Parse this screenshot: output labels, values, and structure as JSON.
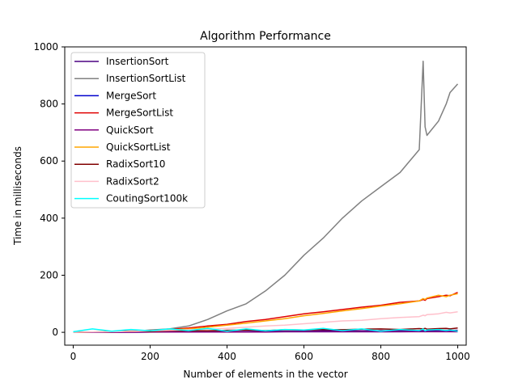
{
  "chart_data": {
    "type": "line",
    "title": "Algorithm Performance",
    "xlabel": "Number of elements in the vector",
    "ylabel": "Time in milliseconds",
    "xlim": [
      -22,
      1022
    ],
    "ylim": [
      -45,
      1000
    ],
    "xticks": [
      0,
      200,
      400,
      600,
      800,
      1000
    ],
    "yticks": [
      0,
      200,
      400,
      600,
      800,
      1000
    ],
    "grid": false,
    "legend_position": "top-left",
    "x": [
      0,
      50,
      100,
      150,
      200,
      250,
      300,
      350,
      400,
      450,
      500,
      550,
      600,
      650,
      700,
      750,
      800,
      850,
      900,
      910,
      915,
      920,
      950,
      970,
      980,
      1000
    ],
    "series": [
      {
        "name": "InsertionSort",
        "color": "#4b0082",
        "values": [
          0,
          0,
          0,
          1,
          1,
          1,
          2,
          2,
          3,
          3,
          4,
          4,
          4,
          5,
          5,
          5,
          6,
          6,
          6,
          6,
          6,
          6,
          7,
          7,
          7,
          7
        ]
      },
      {
        "name": "InsertionSortList",
        "color": "#808080",
        "values": [
          0,
          0,
          1,
          3,
          8,
          12,
          22,
          45,
          75,
          100,
          145,
          200,
          270,
          330,
          400,
          460,
          510,
          560,
          640,
          950,
          720,
          690,
          740,
          800,
          840,
          870
        ]
      },
      {
        "name": "MergeSort",
        "color": "#0000cd",
        "values": [
          0,
          0,
          0,
          0,
          1,
          1,
          1,
          1,
          1,
          1,
          2,
          2,
          2,
          2,
          2,
          2,
          2,
          2,
          3,
          3,
          3,
          3,
          3,
          3,
          3,
          3
        ]
      },
      {
        "name": "MergeSortList",
        "color": "#e00000",
        "values": [
          0,
          1,
          2,
          4,
          6,
          10,
          15,
          22,
          28,
          38,
          45,
          55,
          65,
          72,
          80,
          88,
          95,
          105,
          110,
          115,
          112,
          118,
          125,
          130,
          128,
          140
        ]
      },
      {
        "name": "QuickSort",
        "color": "#800080",
        "values": [
          0,
          0,
          0,
          0,
          1,
          1,
          1,
          1,
          1,
          1,
          1,
          2,
          2,
          2,
          2,
          2,
          2,
          2,
          2,
          2,
          2,
          2,
          2,
          2,
          2,
          2
        ]
      },
      {
        "name": "QuickSortList",
        "color": "#ffa500",
        "values": [
          0,
          1,
          2,
          3,
          5,
          8,
          12,
          18,
          25,
          32,
          40,
          48,
          58,
          66,
          75,
          83,
          92,
          100,
          110,
          118,
          115,
          120,
          130,
          125,
          130,
          135
        ]
      },
      {
        "name": "RadixSort10",
        "color": "#800000",
        "values": [
          0,
          1,
          2,
          4,
          3,
          5,
          6,
          5,
          7,
          8,
          6,
          9,
          8,
          10,
          9,
          11,
          12,
          10,
          13,
          12,
          14,
          11,
          13,
          14,
          12,
          15
        ]
      },
      {
        "name": "RadixSort2",
        "color": "#ffc0cb",
        "values": [
          0,
          1,
          2,
          3,
          5,
          7,
          9,
          11,
          14,
          18,
          22,
          25,
          30,
          35,
          40,
          42,
          48,
          52,
          55,
          60,
          58,
          62,
          65,
          70,
          68,
          72
        ]
      },
      {
        "name": "CoutingSort100k",
        "color": "#00ffff",
        "values": [
          2,
          12,
          4,
          10,
          5,
          12,
          6,
          14,
          4,
          12,
          5,
          10,
          8,
          14,
          6,
          12,
          4,
          10,
          6,
          12,
          5,
          8,
          10,
          6,
          8,
          4
        ]
      }
    ]
  }
}
